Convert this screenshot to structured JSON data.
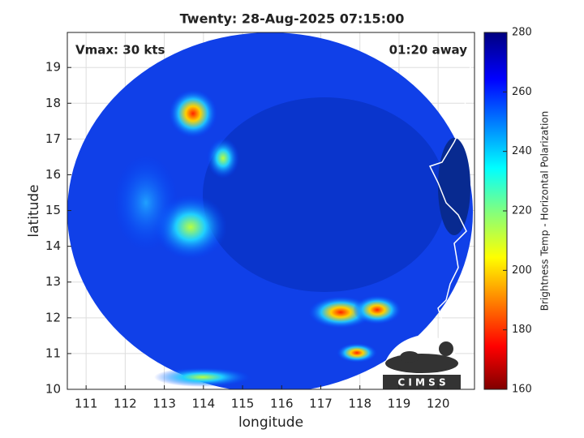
{
  "chart_data": {
    "type": "map",
    "title": "Twenty: 28-Aug-2025 07:15:00",
    "annotations": [
      "Vmax: 30 kts",
      "01:20 away"
    ],
    "x_label": "longitude",
    "y_label": "latitude",
    "xlim": [
      110.52,
      120.93
    ],
    "ylim": [
      10,
      19.98
    ],
    "xticks": [
      111,
      112,
      113,
      114,
      115,
      116,
      117,
      118,
      119,
      120
    ],
    "yticks": [
      10,
      11,
      12,
      13,
      14,
      15,
      16,
      17,
      18,
      19
    ],
    "grid": true,
    "colorbar": {
      "label": "Brightness Temp - Horizontal Polarization",
      "clim": [
        160,
        280
      ],
      "ticks": [
        160,
        180,
        200,
        220,
        240,
        260,
        280
      ]
    },
    "logo_text": "C I M S S"
  }
}
